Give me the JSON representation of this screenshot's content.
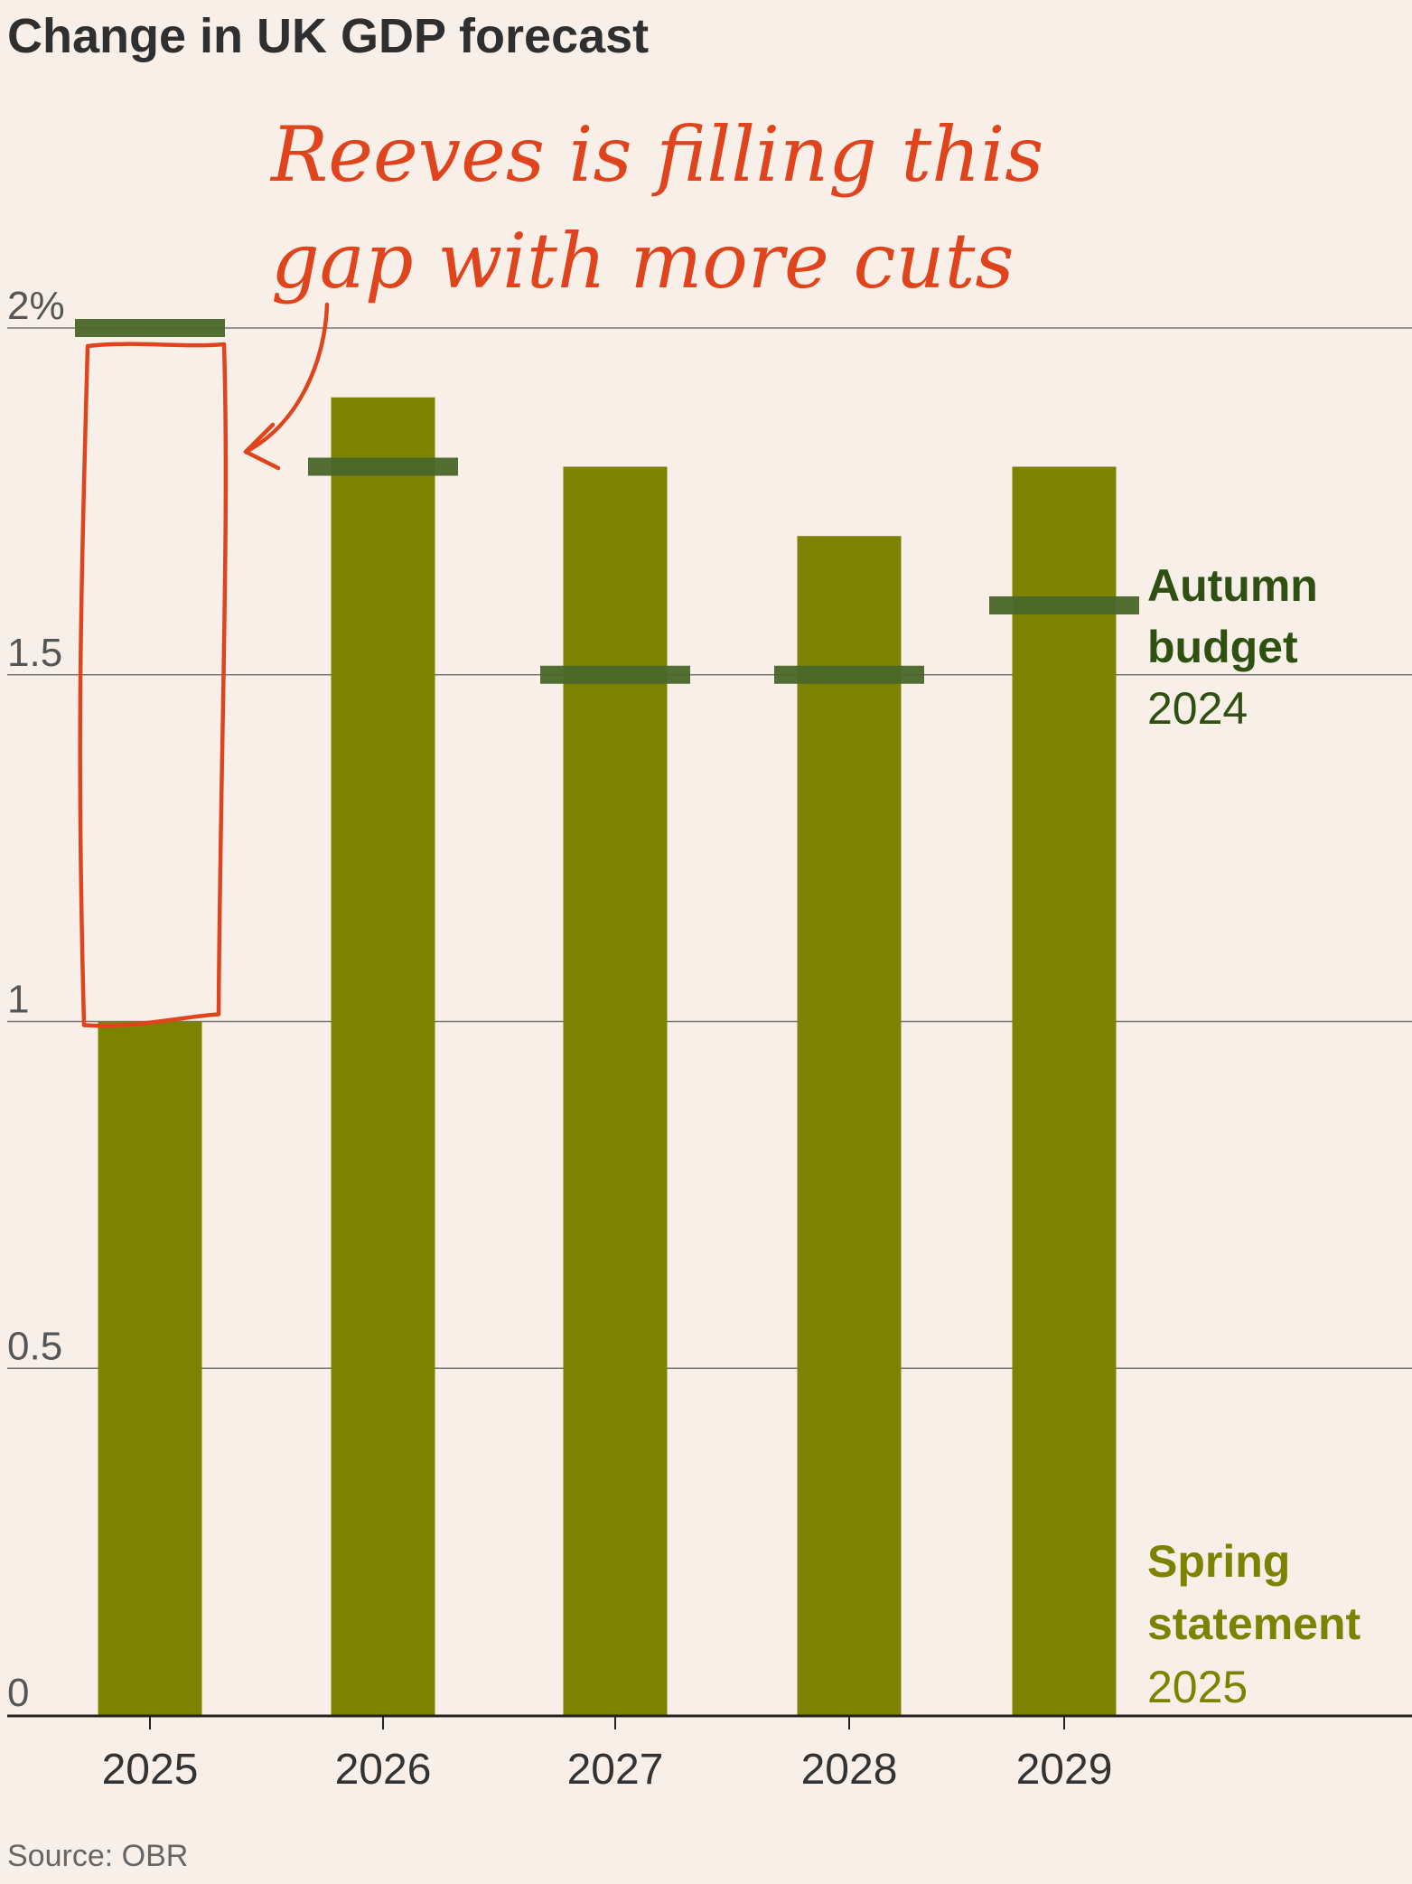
{
  "chart_data": {
    "type": "bar",
    "title": "Change in UK GDP forecast",
    "categories": [
      "2025",
      "2026",
      "2027",
      "2028",
      "2029"
    ],
    "series": [
      {
        "name": "Spring statement 2025",
        "values": [
          1.0,
          1.9,
          1.8,
          1.7,
          1.8
        ],
        "color": "#7d8200"
      },
      {
        "name": "Autumn budget 2024",
        "values": [
          2.0,
          1.8,
          1.5,
          1.5,
          1.6
        ],
        "color": "#4a6628"
      }
    ],
    "ylim": [
      0,
      2.0
    ],
    "yticks": [
      {
        "value": 0,
        "label": "0"
      },
      {
        "value": 0.5,
        "label": "0.5"
      },
      {
        "value": 1,
        "label": "1"
      },
      {
        "value": 1.5,
        "label": "1.5"
      },
      {
        "value": 2,
        "label": "2%"
      }
    ],
    "grid": true,
    "legend": {
      "autumn": {
        "line1": "Autumn",
        "line2": "budget",
        "year": "2024",
        "color": "#2e5010"
      },
      "spring": {
        "line1": "Spring",
        "line2": "statement",
        "year": "2025",
        "color": "#7d8200"
      }
    },
    "annotation": {
      "line1": "Reeves is filling this",
      "line2": "gap with more cuts",
      "color": "#e0441c",
      "category": "2025"
    },
    "source": "Source: OBR"
  }
}
